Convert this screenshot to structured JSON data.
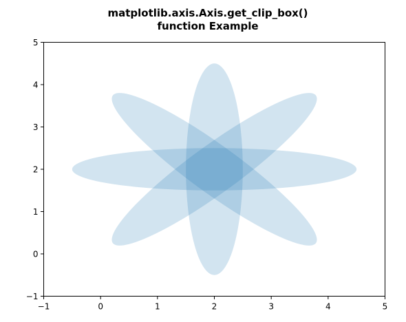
{
  "chart_data": {
    "type": "ellipse-patches",
    "title": [
      "matplotlib.axis.Axis.get_clip_box()",
      "function Example"
    ],
    "xlabel": "",
    "ylabel": "",
    "xlim": [
      -1,
      5
    ],
    "ylim": [
      -1,
      5
    ],
    "xticks": [
      -1,
      0,
      1,
      2,
      3,
      4,
      5
    ],
    "yticks": [
      -1,
      0,
      1,
      2,
      3,
      4,
      5
    ],
    "xtick_labels": [
      "−1",
      "0",
      "1",
      "2",
      "3",
      "4",
      "5"
    ],
    "ytick_labels": [
      "−1",
      "0",
      "1",
      "2",
      "3",
      "4",
      "5"
    ],
    "grid": false,
    "fill_color": "#1f77b4",
    "fill_alpha": 0.2,
    "ellipses": [
      {
        "cx": 2,
        "cy": 2,
        "width": 5,
        "height": 1,
        "angle": 0
      },
      {
        "cx": 2,
        "cy": 2,
        "width": 5,
        "height": 1,
        "angle": 45
      },
      {
        "cx": 2,
        "cy": 2,
        "width": 5,
        "height": 1,
        "angle": 90
      },
      {
        "cx": 2,
        "cy": 2,
        "width": 5,
        "height": 1,
        "angle": 135
      }
    ]
  }
}
